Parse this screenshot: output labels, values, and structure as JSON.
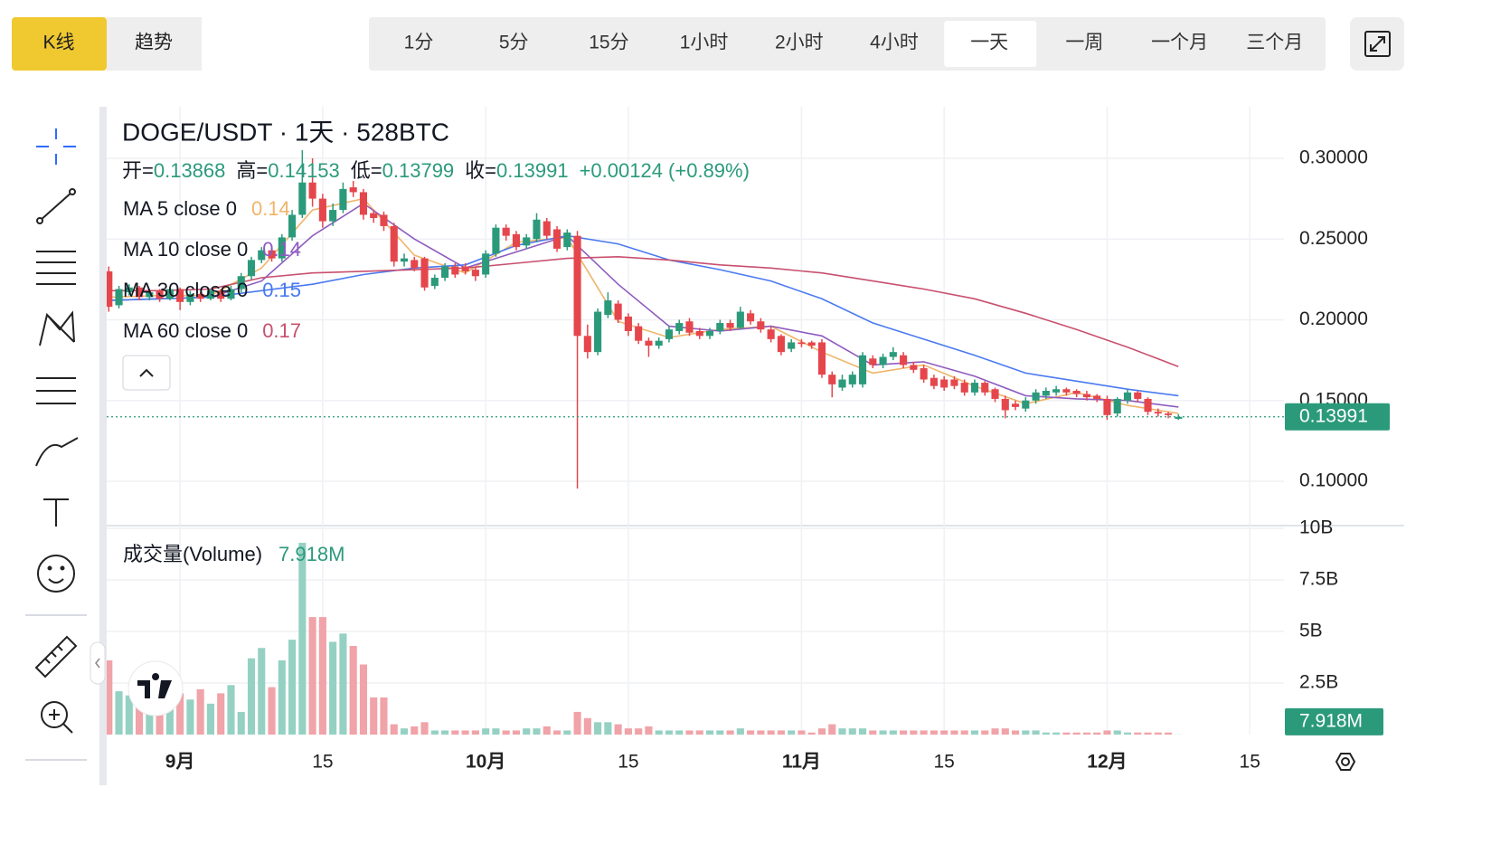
{
  "toolbar": {
    "modes": [
      "K线",
      "趋势"
    ],
    "active_mode": "K线",
    "intervals": [
      "1分",
      "5分",
      "15分",
      "1小时",
      "2小时",
      "4小时",
      "一天",
      "一周",
      "一个月",
      "三个月"
    ],
    "active_interval": "一天"
  },
  "chart_data": {
    "type": "candlestick",
    "title": "DOGE/USDT · 1天 · 528BTC",
    "ohlc_labels": [
      "开=",
      "高=",
      "低=",
      "收="
    ],
    "change_label": "+0.00124 (+0.89%)",
    "up_color": "#2b9a7b",
    "down_color": "#e5464c",
    "x": [
      "08-25",
      "08-26",
      "08-27",
      "08-28",
      "08-29",
      "08-30",
      "08-31",
      "09-01",
      "09-02",
      "09-03",
      "09-04",
      "09-05",
      "09-06",
      "09-07",
      "09-08",
      "09-09",
      "09-10",
      "09-11",
      "09-12",
      "09-13",
      "09-14",
      "09-15",
      "09-16",
      "09-17",
      "09-18",
      "09-19",
      "09-20",
      "09-21",
      "09-22",
      "09-23",
      "09-24",
      "09-25",
      "09-26",
      "09-27",
      "09-28",
      "09-29",
      "09-30",
      "10-01",
      "10-02",
      "10-03",
      "10-04",
      "10-05",
      "10-06",
      "10-07",
      "10-08",
      "10-09",
      "10-10",
      "10-11",
      "10-12",
      "10-13",
      "10-14",
      "10-15",
      "10-16",
      "10-17",
      "10-18",
      "10-19",
      "10-20",
      "10-21",
      "10-22",
      "10-23",
      "10-24",
      "10-25",
      "10-26",
      "10-27",
      "10-28",
      "10-29",
      "10-30",
      "10-31",
      "11-01",
      "11-02",
      "11-03",
      "11-04",
      "11-05",
      "11-06",
      "11-07",
      "11-08",
      "11-09",
      "11-10",
      "11-11",
      "11-12",
      "11-13",
      "11-14",
      "11-15",
      "11-16",
      "11-17",
      "11-18",
      "11-19",
      "11-20",
      "11-21",
      "11-22",
      "11-23",
      "11-24",
      "11-25",
      "11-26",
      "11-27",
      "11-28",
      "11-29",
      "11-30",
      "12-01",
      "12-02",
      "12-03",
      "12-04",
      "12-05",
      "12-06",
      "12-07",
      "12-08"
    ],
    "open": [
      0.23,
      0.209,
      0.217,
      0.22,
      0.214,
      0.218,
      0.213,
      0.219,
      0.211,
      0.216,
      0.213,
      0.218,
      0.213,
      0.219,
      0.227,
      0.237,
      0.243,
      0.238,
      0.251,
      0.265,
      0.285,
      0.275,
      0.261,
      0.268,
      0.282,
      0.279,
      0.266,
      0.265,
      0.258,
      0.236,
      0.237,
      0.238,
      0.221,
      0.226,
      0.233,
      0.233,
      0.231,
      0.228,
      0.241,
      0.257,
      0.253,
      0.246,
      0.25,
      0.261,
      0.256,
      0.245,
      0.252,
      0.19,
      0.18,
      0.203,
      0.21,
      0.202,
      0.196,
      0.187,
      0.184,
      0.188,
      0.193,
      0.199,
      0.193,
      0.19,
      0.193,
      0.198,
      0.195,
      0.204,
      0.199,
      0.194,
      0.19,
      0.182,
      0.186,
      0.186,
      0.186,
      0.166,
      0.158,
      0.16,
      0.16,
      0.176,
      0.172,
      0.177,
      0.178,
      0.172,
      0.17,
      0.164,
      0.163,
      0.163,
      0.161,
      0.155,
      0.161,
      0.157,
      0.151,
      0.148,
      0.145,
      0.15,
      0.153,
      0.155,
      0.157,
      0.156,
      0.154,
      0.153,
      0.151,
      0.142,
      0.15,
      0.155,
      0.151,
      0.143,
      0.142,
      0.13868
    ],
    "high": [
      0.233,
      0.221,
      0.222,
      0.221,
      0.219,
      0.219,
      0.22,
      0.22,
      0.218,
      0.217,
      0.219,
      0.219,
      0.221,
      0.229,
      0.239,
      0.245,
      0.246,
      0.253,
      0.268,
      0.305,
      0.3,
      0.278,
      0.272,
      0.285,
      0.286,
      0.281,
      0.268,
      0.267,
      0.26,
      0.241,
      0.239,
      0.239,
      0.228,
      0.235,
      0.235,
      0.235,
      0.233,
      0.243,
      0.259,
      0.259,
      0.255,
      0.253,
      0.266,
      0.263,
      0.258,
      0.256,
      0.255,
      0.197,
      0.207,
      0.217,
      0.212,
      0.204,
      0.198,
      0.189,
      0.189,
      0.196,
      0.2,
      0.201,
      0.195,
      0.195,
      0.2,
      0.2,
      0.208,
      0.206,
      0.201,
      0.196,
      0.191,
      0.188,
      0.188,
      0.187,
      0.188,
      0.168,
      0.166,
      0.168,
      0.18,
      0.178,
      0.179,
      0.183,
      0.18,
      0.174,
      0.172,
      0.166,
      0.165,
      0.165,
      0.163,
      0.163,
      0.162,
      0.158,
      0.153,
      0.15,
      0.152,
      0.157,
      0.158,
      0.159,
      0.158,
      0.157,
      0.156,
      0.154,
      0.153,
      0.152,
      0.157,
      0.156,
      0.152,
      0.145,
      0.143,
      0.14153
    ],
    "low": [
      0.205,
      0.207,
      0.215,
      0.212,
      0.212,
      0.211,
      0.212,
      0.206,
      0.209,
      0.211,
      0.212,
      0.211,
      0.212,
      0.217,
      0.225,
      0.235,
      0.236,
      0.236,
      0.249,
      0.263,
      0.27,
      0.257,
      0.258,
      0.266,
      0.276,
      0.262,
      0.26,
      0.255,
      0.233,
      0.233,
      0.23,
      0.218,
      0.219,
      0.224,
      0.226,
      0.228,
      0.224,
      0.226,
      0.239,
      0.249,
      0.243,
      0.244,
      0.248,
      0.25,
      0.242,
      0.243,
      0.0955,
      0.176,
      0.178,
      0.201,
      0.198,
      0.19,
      0.185,
      0.177,
      0.182,
      0.186,
      0.191,
      0.19,
      0.188,
      0.188,
      0.191,
      0.193,
      0.194,
      0.197,
      0.192,
      0.186,
      0.178,
      0.18,
      0.183,
      0.182,
      0.164,
      0.152,
      0.156,
      0.158,
      0.158,
      0.17,
      0.17,
      0.175,
      0.17,
      0.167,
      0.161,
      0.157,
      0.156,
      0.157,
      0.153,
      0.153,
      0.153,
      0.149,
      0.139,
      0.144,
      0.143,
      0.148,
      0.151,
      0.153,
      0.153,
      0.152,
      0.15,
      0.149,
      0.138,
      0.14,
      0.148,
      0.149,
      0.141,
      0.14,
      0.139,
      0.13799
    ],
    "close": [
      0.208,
      0.219,
      0.22,
      0.214,
      0.217,
      0.213,
      0.219,
      0.211,
      0.216,
      0.213,
      0.218,
      0.213,
      0.219,
      0.227,
      0.237,
      0.243,
      0.238,
      0.251,
      0.265,
      0.285,
      0.275,
      0.261,
      0.268,
      0.281,
      0.279,
      0.265,
      0.263,
      0.258,
      0.236,
      0.238,
      0.232,
      0.22,
      0.226,
      0.233,
      0.228,
      0.23,
      0.227,
      0.241,
      0.257,
      0.252,
      0.245,
      0.251,
      0.262,
      0.252,
      0.244,
      0.254,
      0.19,
      0.18,
      0.205,
      0.212,
      0.2,
      0.193,
      0.187,
      0.184,
      0.187,
      0.194,
      0.198,
      0.192,
      0.19,
      0.193,
      0.198,
      0.195,
      0.205,
      0.199,
      0.194,
      0.188,
      0.18,
      0.186,
      0.185,
      0.184,
      0.166,
      0.16,
      0.163,
      0.166,
      0.178,
      0.172,
      0.177,
      0.18,
      0.172,
      0.169,
      0.163,
      0.159,
      0.158,
      0.159,
      0.155,
      0.161,
      0.155,
      0.151,
      0.144,
      0.146,
      0.15,
      0.155,
      0.156,
      0.157,
      0.155,
      0.154,
      0.152,
      0.151,
      0.141,
      0.151,
      0.155,
      0.151,
      0.143,
      0.142,
      0.141,
      0.13991
    ],
    "series": [
      {
        "name": "MA 5 close 0",
        "color": "#f0b46a",
        "value_label": "0.14",
        "x": [
          "08-25",
          "08-30",
          "09-04",
          "09-09",
          "09-14",
          "09-19",
          "09-24",
          "09-29",
          "10-04",
          "10-09",
          "10-14",
          "10-19",
          "10-24",
          "10-29",
          "11-03",
          "11-08",
          "11-13",
          "11-18",
          "11-23",
          "11-28",
          "12-03",
          "12-08"
        ],
        "values": [
          0.214,
          0.215,
          0.215,
          0.232,
          0.268,
          0.275,
          0.24,
          0.229,
          0.248,
          0.251,
          0.199,
          0.189,
          0.194,
          0.196,
          0.18,
          0.167,
          0.172,
          0.159,
          0.148,
          0.155,
          0.147,
          0.142
        ]
      },
      {
        "name": "MA 10 close 0",
        "color": "#8e5bc0",
        "value_label": "0.14",
        "x": [
          "08-25",
          "08-30",
          "09-04",
          "09-09",
          "09-14",
          "09-19",
          "09-24",
          "09-29",
          "10-04",
          "10-09",
          "10-14",
          "10-19",
          "10-24",
          "10-29",
          "11-03",
          "11-08",
          "11-13",
          "11-18",
          "11-23",
          "11-28",
          "12-03",
          "12-08"
        ],
        "values": [
          0.212,
          0.213,
          0.214,
          0.224,
          0.252,
          0.272,
          0.25,
          0.232,
          0.242,
          0.252,
          0.222,
          0.196,
          0.193,
          0.196,
          0.19,
          0.172,
          0.174,
          0.165,
          0.153,
          0.151,
          0.15,
          0.146
        ]
      },
      {
        "name": "MA 30 close 0",
        "color": "#4a7af0",
        "value_label": "0.15",
        "x": [
          "08-25",
          "08-30",
          "09-04",
          "09-09",
          "09-14",
          "09-19",
          "09-24",
          "09-29",
          "10-04",
          "10-09",
          "10-14",
          "10-19",
          "10-24",
          "10-29",
          "11-03",
          "11-08",
          "11-13",
          "11-18",
          "11-23",
          "11-28",
          "12-03",
          "12-08"
        ],
        "values": [
          0.212,
          0.213,
          0.214,
          0.218,
          0.222,
          0.228,
          0.232,
          0.234,
          0.246,
          0.252,
          0.247,
          0.237,
          0.231,
          0.224,
          0.213,
          0.198,
          0.188,
          0.178,
          0.167,
          0.162,
          0.157,
          0.153
        ]
      },
      {
        "name": "MA 60 close 0",
        "color": "#c8506e",
        "value_label": "0.17",
        "x": [
          "08-25",
          "08-30",
          "09-04",
          "09-09",
          "09-14",
          "09-19",
          "09-24",
          "09-29",
          "10-04",
          "10-09",
          "10-14",
          "10-19",
          "10-24",
          "10-29",
          "11-03",
          "11-08",
          "11-13",
          "11-18",
          "11-23",
          "11-28",
          "12-03",
          "12-08"
        ],
        "values": [
          0.218,
          0.218,
          0.219,
          0.226,
          0.229,
          0.23,
          0.231,
          0.232,
          0.235,
          0.238,
          0.239,
          0.237,
          0.234,
          0.232,
          0.229,
          0.224,
          0.219,
          0.213,
          0.204,
          0.194,
          0.183,
          0.171
        ]
      }
    ],
    "xlim": [
      "08-24",
      "12-18"
    ],
    "xticks": [
      {
        "value": "09-01",
        "label": "9月"
      },
      {
        "value": "09-15",
        "label": "15"
      },
      {
        "value": "10-01",
        "label": "10月"
      },
      {
        "value": "10-15",
        "label": "15"
      },
      {
        "value": "11-01",
        "label": "11月"
      },
      {
        "value": "11-15",
        "label": "15"
      },
      {
        "value": "12-01",
        "label": "12月"
      },
      {
        "value": "12-15",
        "label": "15"
      }
    ],
    "ylim": [
      0.0731,
      0.3319
    ],
    "yticks": [
      {
        "value": 0.1,
        "label": "0.10000"
      },
      {
        "value": 0.15,
        "label": "0.15000"
      },
      {
        "value": 0.2,
        "label": "0.20000"
      },
      {
        "value": 0.25,
        "label": "0.25000"
      },
      {
        "value": 0.3,
        "label": "0.30000"
      }
    ],
    "grid": true,
    "volume": {
      "title": "成交量(Volume)",
      "up_color": "#95d1c3",
      "down_color": "#f0a3a8",
      "values": [
        3.6,
        2.1,
        1.9,
        2.0,
        1.4,
        1.8,
        1.4,
        2.0,
        1.7,
        2.2,
        1.5,
        2.0,
        2.4,
        1.1,
        3.7,
        4.2,
        2.3,
        3.6,
        4.6,
        9.3,
        5.7,
        5.7,
        4.5,
        4.9,
        4.3,
        3.4,
        1.8,
        1.8,
        0.5,
        0.3,
        0.4,
        0.6,
        0.2,
        0.2,
        0.2,
        0.2,
        0.2,
        0.3,
        0.3,
        0.2,
        0.2,
        0.3,
        0.3,
        0.4,
        0.2,
        0.2,
        1.1,
        0.8,
        0.6,
        0.6,
        0.5,
        0.3,
        0.3,
        0.4,
        0.2,
        0.2,
        0.2,
        0.2,
        0.2,
        0.2,
        0.2,
        0.2,
        0.3,
        0.2,
        0.2,
        0.2,
        0.2,
        0.2,
        0.2,
        0.1,
        0.3,
        0.5,
        0.3,
        0.3,
        0.3,
        0.2,
        0.2,
        0.2,
        0.2,
        0.2,
        0.2,
        0.2,
        0.2,
        0.2,
        0.2,
        0.2,
        0.2,
        0.3,
        0.3,
        0.2,
        0.2,
        0.2,
        0.1,
        0.1,
        0.1,
        0.1,
        0.1,
        0.1,
        0.2,
        0.2,
        0.1,
        0.1,
        0.1,
        0.1,
        0.1,
        0.007918
      ],
      "last_value_label": "7.918M",
      "ylim": [
        0,
        10.09
      ],
      "yticks": [
        {
          "value": 2.5,
          "label": "2.5B"
        },
        {
          "value": 5,
          "label": "5B"
        },
        {
          "value": 7.5,
          "label": "7.5B"
        },
        {
          "value": 10,
          "label": "10B"
        }
      ]
    }
  }
}
